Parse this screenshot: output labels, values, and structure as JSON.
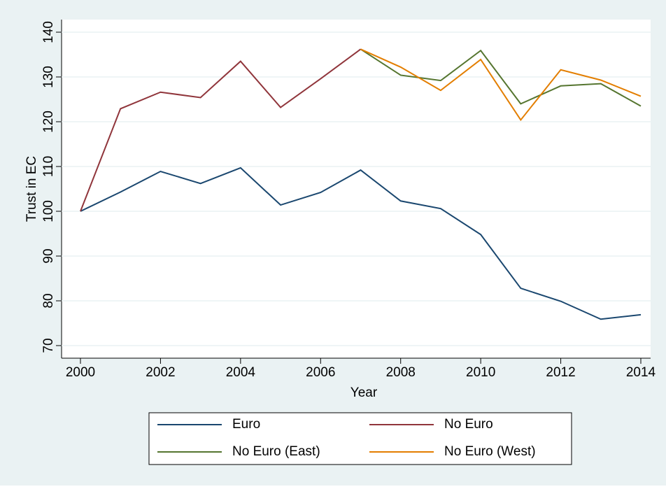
{
  "chart_data": {
    "type": "line",
    "x_label": "Year",
    "y_label": "Trust in EC",
    "x": [
      2000,
      2001,
      2002,
      2003,
      2004,
      2005,
      2006,
      2007,
      2008,
      2009,
      2010,
      2011,
      2012,
      2013,
      2014
    ],
    "series": [
      {
        "name": "Euro",
        "color": "#1a476f",
        "values": [
          100,
          104.3,
          108.9,
          106.2,
          109.7,
          101.4,
          104.2,
          109.2,
          102.3,
          100.6,
          94.8,
          82.8,
          79.9,
          75.9,
          76.9
        ]
      },
      {
        "name": "No Euro",
        "color": "#90353b",
        "values": [
          100,
          122.9,
          126.6,
          125.4,
          133.5,
          123.2,
          129.6,
          136.2,
          null,
          null,
          null,
          null,
          null,
          null,
          null
        ]
      },
      {
        "name": "No Euro (East)",
        "color": "#55752f",
        "values": [
          null,
          null,
          null,
          null,
          null,
          null,
          null,
          136.2,
          130.4,
          129.2,
          135.9,
          124.0,
          128.0,
          128.5,
          123.5
        ]
      },
      {
        "name": "No Euro (West)",
        "color": "#e37e00",
        "values": [
          null,
          null,
          null,
          null,
          null,
          null,
          null,
          136.2,
          132.2,
          127.0,
          133.9,
          120.4,
          131.6,
          129.3,
          125.7
        ]
      }
    ],
    "xlim": [
      2000,
      2014
    ],
    "xticks": [
      2000,
      2002,
      2004,
      2006,
      2008,
      2010,
      2012,
      2014
    ],
    "ylim": [
      70,
      140
    ],
    "yticks": [
      70,
      80,
      90,
      100,
      110,
      120,
      130,
      140
    ],
    "grid": true,
    "legend": "bottom"
  }
}
